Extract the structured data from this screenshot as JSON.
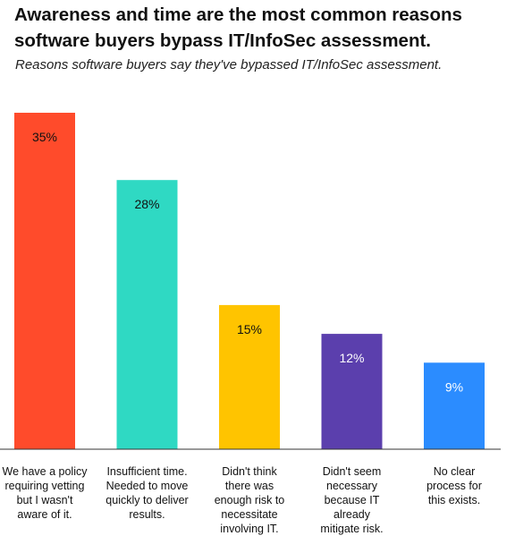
{
  "title": "Awareness and time are the most common reasons software buyers bypass IT/InfoSec assessment.",
  "subtitle": "Reasons software buyers say they've bypassed IT/InfoSec assessment.",
  "chart_data": {
    "type": "bar",
    "title": "Awareness and time are the most common reasons software buyers bypass IT/InfoSec assessment.",
    "subtitle": "Reasons software buyers say they've bypassed IT/InfoSec assessment.",
    "categories": [
      "We have a policy requiring vetting but I wasn't aware of it.",
      "Insufficient time. Needed to move quickly to deliver results.",
      "Didn't think there was enough risk to necessitate involving IT.",
      "Didn't seem necessary because IT already mitigate risk.",
      "No clear process for this exists."
    ],
    "category_lines": [
      [
        "We have a policy",
        "requiring vetting",
        "but I wasn't",
        "aware of it."
      ],
      [
        "Insufficient time.",
        "Needed to move",
        "quickly to deliver",
        "results."
      ],
      [
        "Didn't think",
        "there was",
        "enough risk to",
        "necessitate",
        "involving IT."
      ],
      [
        "Didn't seem",
        "necessary",
        "because IT",
        "already",
        "mitigate risk."
      ],
      [
        "No clear",
        "process for",
        "this exists."
      ]
    ],
    "values": [
      35,
      28,
      15,
      12,
      9
    ],
    "labels": [
      "35%",
      "28%",
      "15%",
      "12%",
      "9%"
    ],
    "unit": "%",
    "colors": [
      "#ff4b2b",
      "#2fd9c3",
      "#ffc400",
      "#5b3fad",
      "#2b8cff"
    ],
    "label_colors": [
      "#111111",
      "#111111",
      "#111111",
      "#ffffff",
      "#ffffff"
    ],
    "ylim": [
      0,
      35
    ],
    "grid": false,
    "legend": "none"
  }
}
